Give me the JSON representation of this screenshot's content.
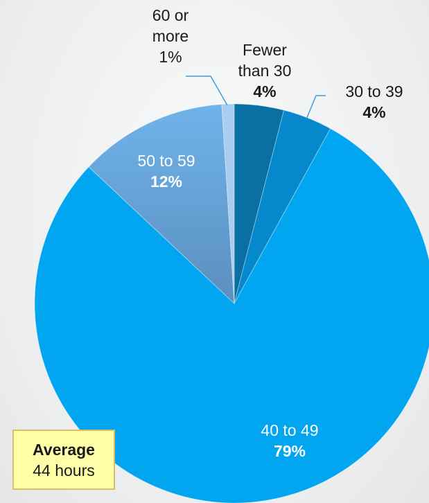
{
  "chart_data": {
    "type": "pie",
    "title": "",
    "slices": [
      {
        "label_lines": [
          "Fewer",
          "than 30"
        ],
        "value_label": "4%",
        "value": 4,
        "color": "#0a6fa3"
      },
      {
        "label_lines": [
          "30 to 39"
        ],
        "value_label": "4%",
        "value": 4,
        "color": "#0589cc"
      },
      {
        "label_lines": [
          "40 to 49"
        ],
        "value_label": "79%",
        "value": 79,
        "color": "#02a5ef"
      },
      {
        "label_lines": [
          "50 to 59"
        ],
        "value_label": "12%",
        "value": 12,
        "color": "#62a8e2"
      },
      {
        "label_lines": [
          "60 or",
          "more"
        ],
        "value_label": "1%",
        "value": 1,
        "color": "#a8cdf0"
      }
    ]
  },
  "callout": {
    "title": "Average",
    "value": "44 hours"
  }
}
